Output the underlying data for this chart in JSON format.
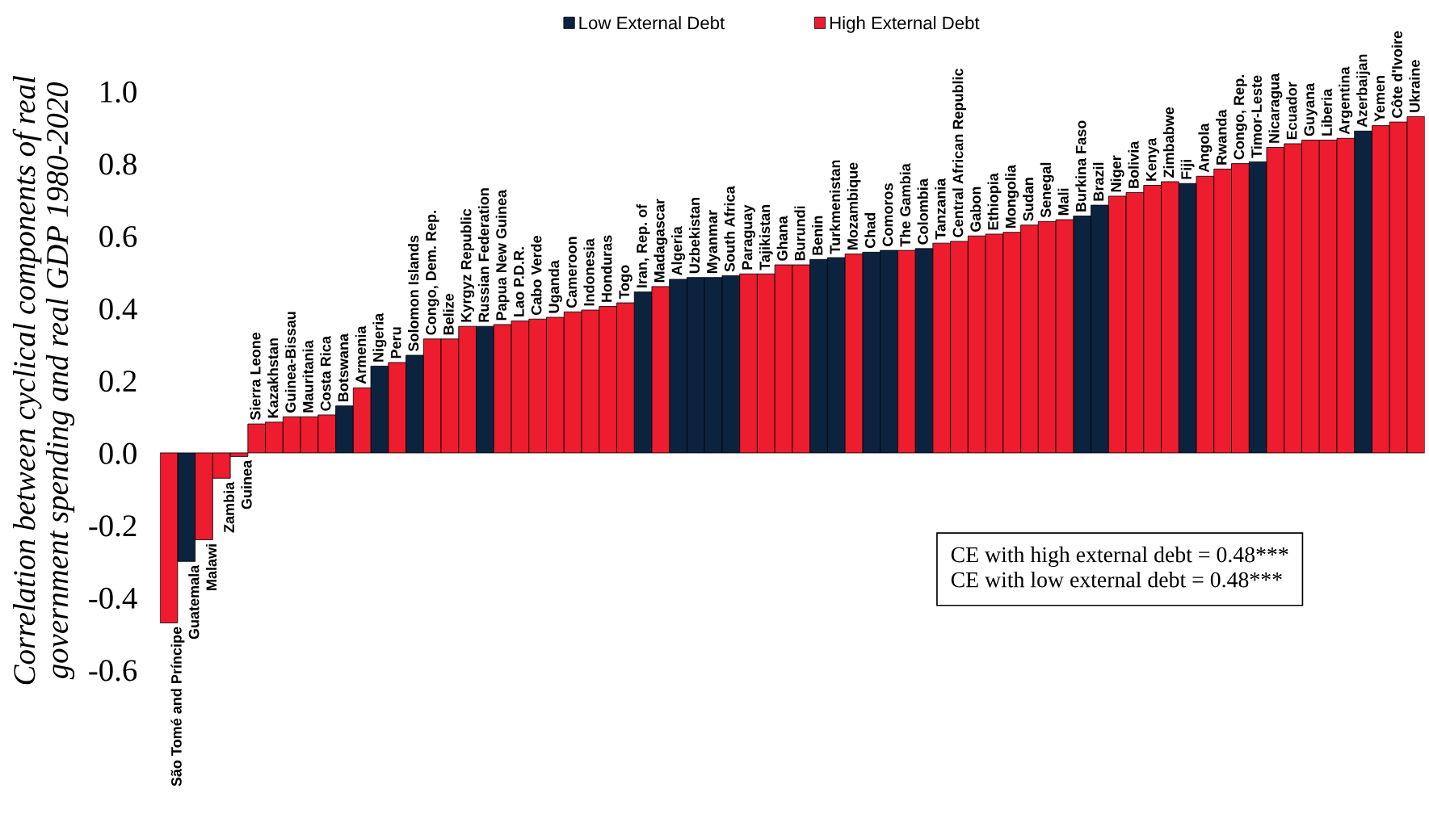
{
  "chart_data": {
    "type": "bar",
    "ylabel": "Correlation between cyclical components of real\ngovernment spending and real GDP 1980-2020",
    "categories": [
      "São Tomé and Príncipe",
      "Guatemala",
      "Malawi",
      "Zambia",
      "Guinea",
      "Sierra Leone",
      "Kazakhstan",
      "Guinea-Bissau",
      "Mauritania",
      "Costa Rica",
      "Botswana",
      "Armenia",
      "Nigeria",
      "Peru",
      "Solomon Islands",
      "Congo, Dem. Rep.",
      "Belize",
      "Kyrgyz Republic",
      "Russian Federation",
      "Papua New Guinea",
      "Lao P.D.R.",
      "Cabo Verde",
      "Uganda",
      "Cameroon",
      "Indonesia",
      "Honduras",
      "Togo",
      "Iran, Rep. of",
      "Madagascar",
      "Algeria",
      "Uzbekistan",
      "Myanmar",
      "South Africa",
      "Paraguay",
      "Tajikistan",
      "Ghana",
      "Burundi",
      "Benin",
      "Turkmenistan",
      "Mozambique",
      "Chad",
      "Comoros",
      "The Gambia",
      "Colombia",
      "Tanzania",
      "Central African Republic",
      "Gabon",
      "Ethiopia",
      "Mongolia",
      "Sudan",
      "Senegal",
      "Mali",
      "Burkina Faso",
      "Brazil",
      "Niger",
      "Bolivia",
      "Kenya",
      "Zimbabwe",
      "Fiji",
      "Angola",
      "Rwanda",
      "Congo, Rep.",
      "Timor-Leste",
      "Nicaragua",
      "Ecuador",
      "Guyana",
      "Liberia",
      "Argentina",
      "Azerbaijan",
      "Yemen",
      "Côte d'Ivoire",
      "Ukraine"
    ],
    "series": [
      {
        "name": "Low External Debt",
        "color": "#0c2340",
        "values": [
          null,
          -0.3,
          null,
          null,
          null,
          null,
          null,
          null,
          null,
          null,
          0.13,
          null,
          0.24,
          null,
          0.27,
          null,
          null,
          null,
          0.35,
          null,
          null,
          null,
          null,
          null,
          null,
          null,
          null,
          0.445,
          null,
          0.48,
          0.485,
          0.485,
          0.49,
          null,
          null,
          null,
          null,
          0.535,
          0.54,
          null,
          0.555,
          0.56,
          null,
          0.565,
          null,
          null,
          null,
          null,
          null,
          null,
          null,
          null,
          0.655,
          0.685,
          null,
          null,
          null,
          null,
          0.745,
          null,
          null,
          null,
          0.805,
          null,
          null,
          null,
          null,
          null,
          0.89,
          null,
          null,
          null
        ]
      },
      {
        "name": "High External Debt",
        "color": "#ed1c2e",
        "values": [
          -0.47,
          null,
          -0.24,
          -0.07,
          -0.01,
          0.08,
          0.085,
          0.1,
          0.1,
          0.105,
          null,
          0.18,
          null,
          0.25,
          null,
          0.315,
          0.315,
          0.35,
          null,
          0.355,
          0.365,
          0.37,
          0.375,
          0.39,
          0.395,
          0.405,
          0.415,
          null,
          0.46,
          null,
          null,
          null,
          null,
          0.495,
          0.495,
          0.52,
          0.52,
          null,
          null,
          0.55,
          null,
          null,
          0.56,
          null,
          0.58,
          0.585,
          0.6,
          0.605,
          0.61,
          0.63,
          0.64,
          0.645,
          null,
          null,
          0.71,
          0.72,
          0.74,
          0.75,
          null,
          0.765,
          0.785,
          0.8,
          null,
          0.845,
          0.855,
          0.865,
          0.865,
          0.87,
          null,
          0.905,
          0.915,
          0.93
        ]
      }
    ],
    "ylim": [
      -0.6,
      1.0
    ],
    "yticks": [
      {
        "value": -0.6,
        "label": "-0.6"
      },
      {
        "value": -0.4,
        "label": "-0.4"
      },
      {
        "value": -0.2,
        "label": "-0.2"
      },
      {
        "value": 0.0,
        "label": "0.0"
      },
      {
        "value": 0.2,
        "label": "0.2"
      },
      {
        "value": 0.4,
        "label": "0.4"
      },
      {
        "value": 0.6,
        "label": "0.6"
      },
      {
        "value": 0.8,
        "label": "0.8"
      },
      {
        "value": 1.0,
        "label": "1.0"
      }
    ],
    "grid": false,
    "legend": "top",
    "annotations": [
      "CE with high external debt = 0.48***",
      "CE with low external debt = 0.48***"
    ]
  }
}
